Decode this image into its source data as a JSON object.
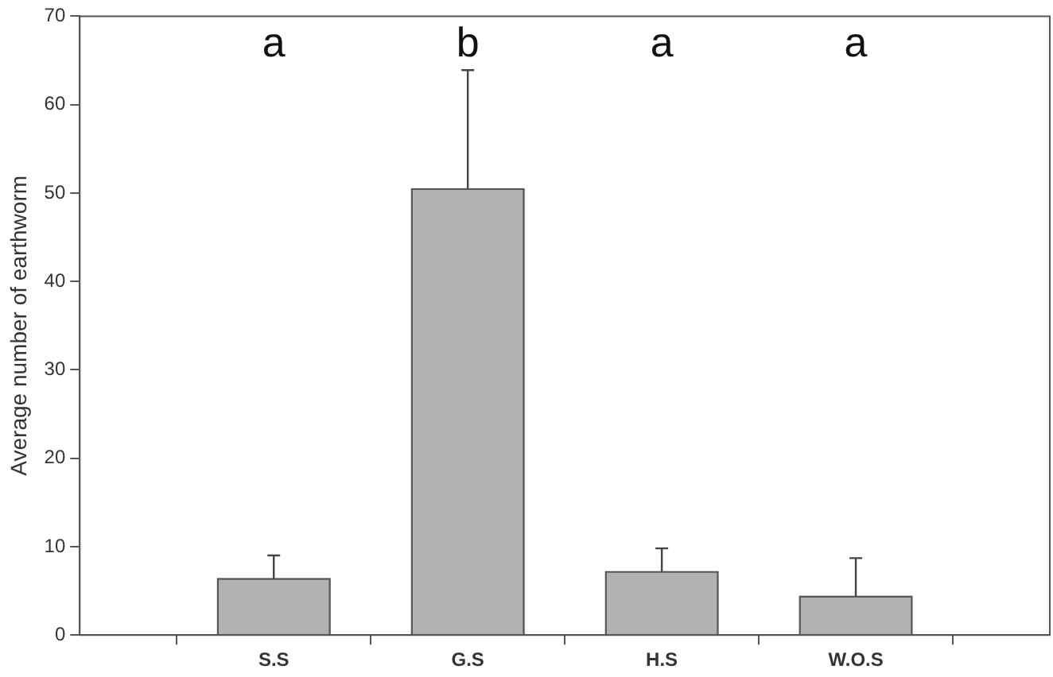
{
  "chart_data": {
    "type": "bar",
    "ylabel": "Average number of earthworm",
    "categories": [
      "S.S",
      "G.S",
      "H.S",
      "W.O.S"
    ],
    "values": [
      6.4,
      50.5,
      7.2,
      4.4
    ],
    "errors": [
      [
        6.4,
        9.0
      ],
      [
        50.5,
        63.9
      ],
      [
        7.2,
        9.8
      ],
      [
        4.4,
        8.7
      ]
    ],
    "color": "#b2b2b2",
    "ylim": [
      0,
      70
    ],
    "yticks": [
      0,
      10,
      20,
      30,
      40,
      50,
      60,
      70
    ],
    "grid": false,
    "legend": false,
    "annotations": [
      "a",
      "b",
      "a",
      "a"
    ]
  }
}
